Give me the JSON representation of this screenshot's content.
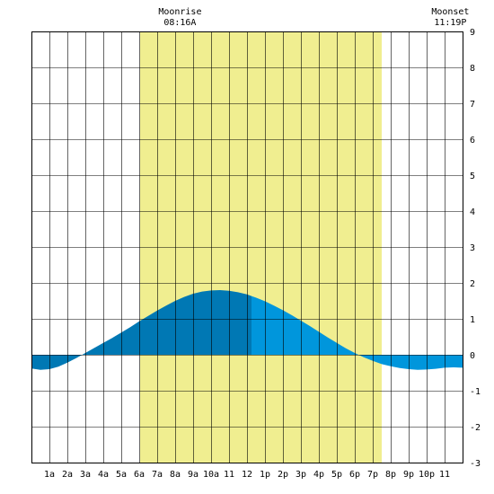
{
  "chart_data": {
    "type": "area",
    "title": "",
    "xlabel": "",
    "ylabel": "",
    "x_tick_labels": [
      "1a",
      "2a",
      "3a",
      "4a",
      "5a",
      "6a",
      "7a",
      "8a",
      "9a",
      "10a",
      "11",
      "12",
      "1p",
      "2p",
      "3p",
      "4p",
      "5p",
      "6p",
      "7p",
      "8p",
      "9p",
      "10p",
      "11"
    ],
    "x_hours": [
      1,
      2,
      3,
      4,
      5,
      6,
      7,
      8,
      9,
      10,
      11,
      12,
      13,
      14,
      15,
      16,
      17,
      18,
      19,
      20,
      21,
      22,
      23
    ],
    "y_tick_labels": [
      "9",
      "8",
      "7",
      "6",
      "5",
      "4",
      "3",
      "2",
      "1",
      "0",
      "-1",
      "-2",
      "-3"
    ],
    "xlim": [
      0,
      24
    ],
    "ylim": [
      -3,
      9
    ],
    "grid": true,
    "daylight_hours": [
      6.05,
      19.5
    ],
    "series": [
      {
        "x": [
          0,
          0.5,
          1,
          1.5,
          2,
          2.5,
          3,
          3.5,
          4,
          4.5,
          5,
          5.5,
          6,
          6.5,
          7,
          7.5,
          8,
          8.5,
          9,
          9.5,
          10,
          10.5,
          11,
          11.5,
          12,
          12.5,
          13,
          13.5,
          14,
          14.5,
          15,
          15.5,
          16,
          16.5,
          17,
          17.5,
          18,
          18.5,
          19,
          19.5,
          20,
          20.5,
          21,
          21.5,
          22,
          22.5,
          23,
          23.5,
          24
        ],
        "y": [
          -0.38,
          -0.42,
          -0.4,
          -0.33,
          -0.22,
          -0.09,
          0.05,
          0.19,
          0.33,
          0.47,
          0.62,
          0.77,
          0.93,
          1.08,
          1.23,
          1.37,
          1.5,
          1.61,
          1.7,
          1.76,
          1.79,
          1.8,
          1.78,
          1.74,
          1.68,
          1.59,
          1.49,
          1.37,
          1.24,
          1.1,
          0.95,
          0.8,
          0.64,
          0.48,
          0.33,
          0.18,
          0.05,
          -0.07,
          -0.17,
          -0.26,
          -0.32,
          -0.37,
          -0.4,
          -0.42,
          -0.41,
          -0.39,
          -0.36,
          -0.35,
          -0.36
        ]
      }
    ],
    "split_at_hour": 12.25,
    "annotations": [
      {
        "label": "Moonrise",
        "time": "08:16A",
        "hour": 8.27
      },
      {
        "label": "Moonset",
        "time": "11:19P",
        "hour": 23.32
      }
    ],
    "colors": {
      "daylight": "#f0ee90",
      "tide_dark": "#0078b4",
      "tide_light": "#0096dc",
      "grid": "#000000",
      "background": "#ffffff"
    }
  }
}
